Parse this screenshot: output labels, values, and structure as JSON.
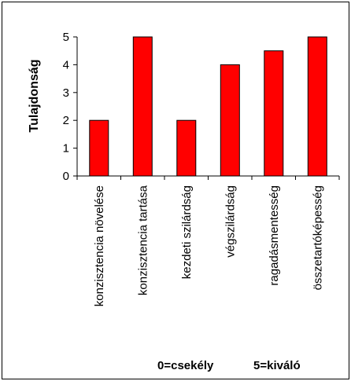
{
  "chart_data": {
    "type": "bar",
    "categories": [
      "konzisztencia növelése",
      "konzisztencia tartása",
      "kezdeti szilárdság",
      "végszilárdság",
      "ragadásmentesség",
      "összetartóképesség"
    ],
    "values": [
      2,
      5,
      2,
      4,
      4.5,
      5
    ],
    "ylabel": "Tulajdonság",
    "ylim": [
      0,
      5
    ],
    "yticks": [
      "0",
      "1",
      "2",
      "3",
      "4",
      "5"
    ],
    "grid": false,
    "legend": "none",
    "bar_color": "#ff0000",
    "bar_edge_color": "#000000",
    "scale_note_low": "0=csekély",
    "scale_note_high": "5=kiváló"
  }
}
